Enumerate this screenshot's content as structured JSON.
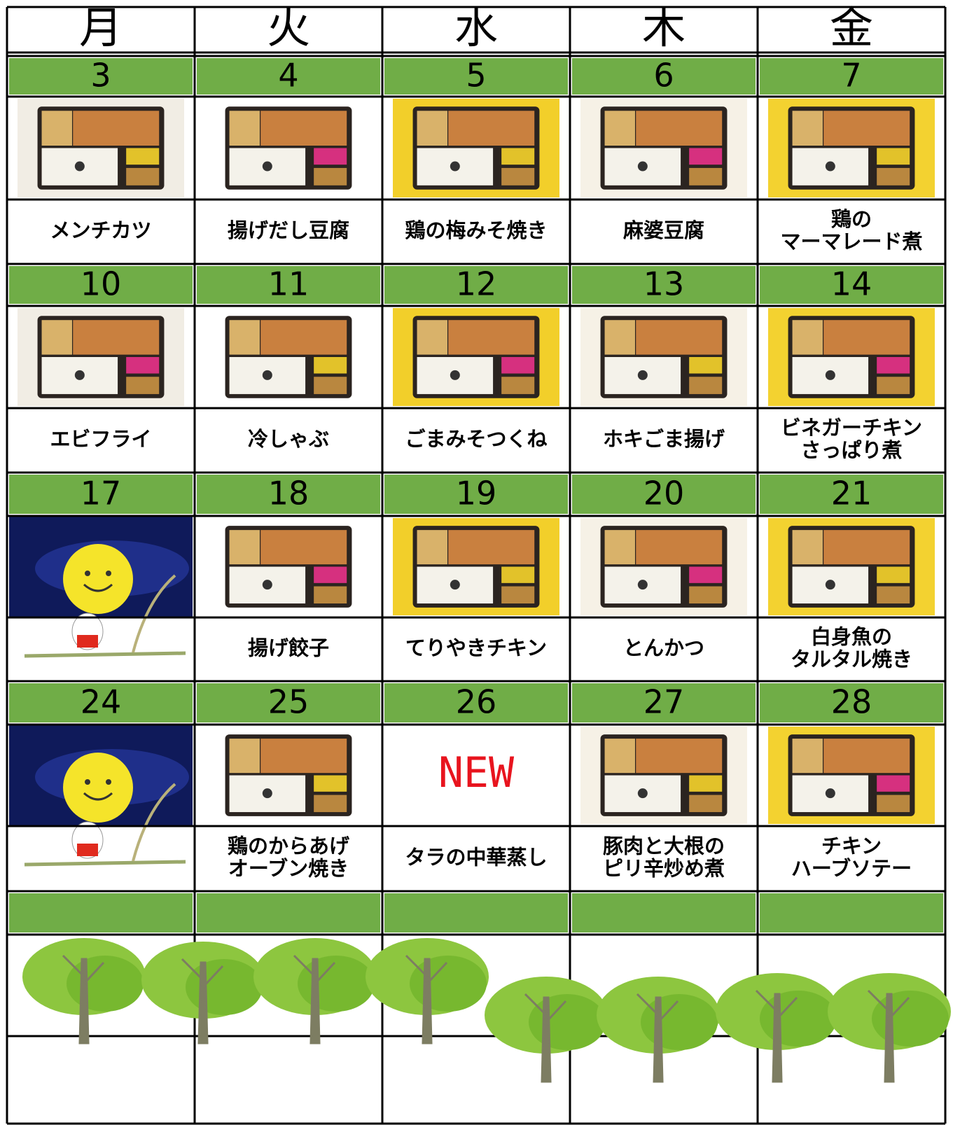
{
  "weekdays": [
    "月",
    "火",
    "水",
    "木",
    "金"
  ],
  "weeks": [
    {
      "days": [
        {
          "date": "3",
          "dish": [
            "メンチカツ"
          ]
        },
        {
          "date": "4",
          "dish": [
            "揚げだし豆腐"
          ]
        },
        {
          "date": "5",
          "dish": [
            "鶏の梅みそ焼き"
          ]
        },
        {
          "date": "6",
          "dish": [
            "麻婆豆腐"
          ]
        },
        {
          "date": "7",
          "dish": [
            "鶏の",
            "マーマレード煮"
          ]
        }
      ]
    },
    {
      "days": [
        {
          "date": "10",
          "dish": [
            "エビフライ"
          ]
        },
        {
          "date": "11",
          "dish": [
            "冷しゃぶ"
          ]
        },
        {
          "date": "12",
          "dish": [
            "ごまみそつくね"
          ]
        },
        {
          "date": "13",
          "dish": [
            "ホキごま揚げ"
          ]
        },
        {
          "date": "14",
          "dish": [
            "ビネガーチキン",
            "さっぱり煮"
          ]
        }
      ]
    },
    {
      "days": [
        {
          "date": "17"
        },
        {
          "date": "18",
          "dish": [
            "揚げ餃子"
          ]
        },
        {
          "date": "19",
          "dish": [
            "てりやきチキン"
          ]
        },
        {
          "date": "20",
          "dish": [
            "とんかつ"
          ]
        },
        {
          "date": "21",
          "dish": [
            "白身魚の",
            "タルタル焼き"
          ]
        }
      ]
    },
    {
      "days": [
        {
          "date": "24"
        },
        {
          "date": "25",
          "dish": [
            "鶏のからあげ",
            "オーブン焼き"
          ]
        },
        {
          "date": "26",
          "badge": "NEW",
          "dish": [
            "タラの中華蒸し"
          ]
        },
        {
          "date": "27",
          "dish": [
            "豚肉と大根の",
            "ピリ辛炒め煮"
          ]
        },
        {
          "date": "28",
          "dish": [
            "チキン",
            "ハーブソテー"
          ]
        }
      ]
    }
  ]
}
